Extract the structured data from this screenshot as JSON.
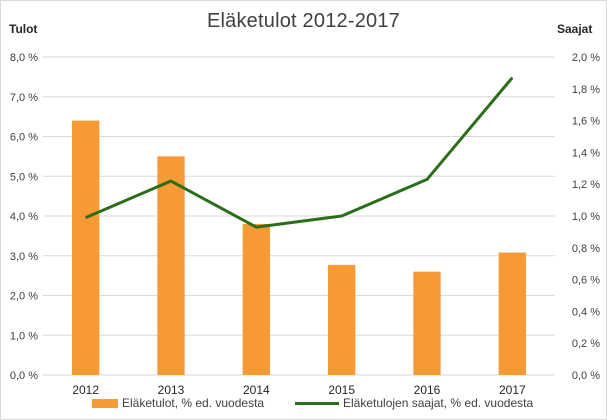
{
  "chart_data": {
    "type": "bar",
    "title": "Eläketulot 2012-2017",
    "y_left_label": "Tulot",
    "y_right_label": "Saajat",
    "categories": [
      "2012",
      "2013",
      "2014",
      "2015",
      "2016",
      "2017"
    ],
    "series": [
      {
        "name": "Eläketulot, % ed. vuodesta",
        "type": "bar",
        "axis": "left",
        "values": [
          6.4,
          5.5,
          3.8,
          2.77,
          2.6,
          3.08
        ]
      },
      {
        "name": "Eläketulojen saajat, % ed. vuodesta",
        "type": "line",
        "axis": "right",
        "values": [
          0.99,
          1.22,
          0.93,
          1.0,
          1.23,
          1.87
        ]
      }
    ],
    "y_left": {
      "range": [
        0,
        8
      ],
      "ticks": [
        "0,0 %",
        "1,0 %",
        "2,0 %",
        "3,0 %",
        "4,0 %",
        "5,0 %",
        "6,0 %",
        "7,0 %",
        "8,0 %"
      ]
    },
    "y_right": {
      "range": [
        0,
        2
      ],
      "ticks": [
        "0,0 %",
        "0,2 %",
        "0,4 %",
        "0,6 %",
        "0,8 %",
        "1,0 %",
        "1,2 %",
        "1,4 %",
        "1,6 %",
        "1,8 %",
        "2,0 %"
      ]
    },
    "grid": true,
    "legend": "bottom",
    "colors": {
      "bar": "#f79a36",
      "line": "#2a6e1a",
      "grid": "#d9d9d9"
    }
  }
}
